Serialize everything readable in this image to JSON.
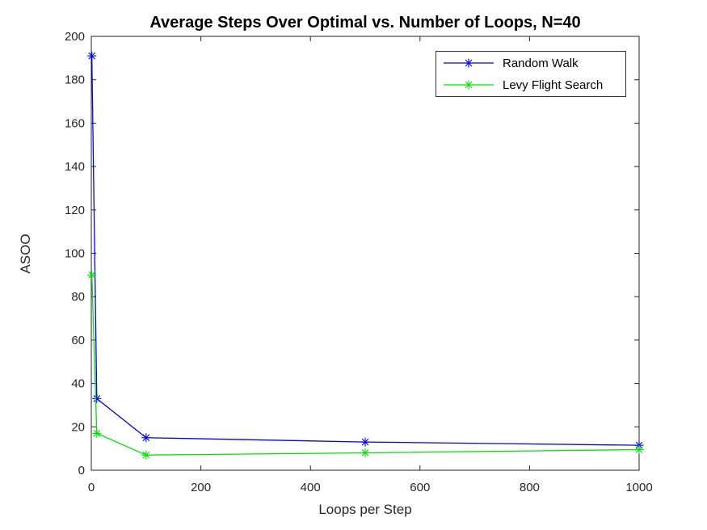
{
  "chart_data": {
    "type": "line",
    "title": "Average Steps Over Optimal vs. Number of Loops, N=40",
    "xlabel": "Loops per Step",
    "ylabel": "ASOO",
    "xlim": [
      0,
      1000
    ],
    "ylim": [
      0,
      200
    ],
    "xticks": [
      0,
      200,
      400,
      600,
      800,
      1000
    ],
    "yticks": [
      0,
      20,
      40,
      60,
      80,
      100,
      120,
      140,
      160,
      180,
      200
    ],
    "grid": false,
    "box": true,
    "tick_direction": "in",
    "axis_color": "#262626",
    "background_color": "#ffffff",
    "legend": {
      "position": "top-right-inside",
      "border_color": "#333333",
      "background": "#ffffff"
    },
    "series": [
      {
        "name": "Random Walk",
        "color": "#0000ff",
        "marker": "asterisk",
        "x": [
          1,
          10,
          100,
          500,
          1000
        ],
        "y": [
          191,
          33,
          15,
          13,
          11.5
        ]
      },
      {
        "name": "Levy Flight Search",
        "color": "#00e400",
        "marker": "asterisk",
        "x": [
          1,
          10,
          100,
          500,
          1000
        ],
        "y": [
          90,
          17,
          7,
          8,
          9.5
        ]
      }
    ]
  }
}
